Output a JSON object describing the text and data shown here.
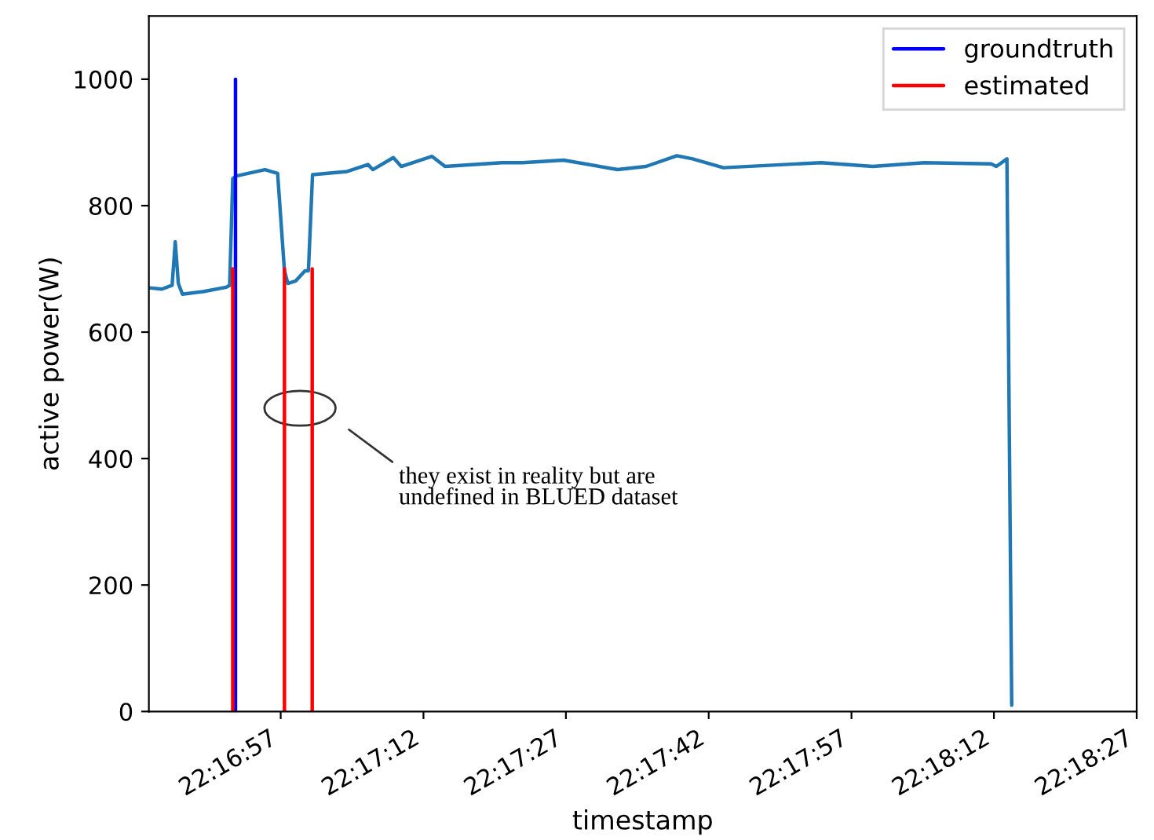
{
  "chart_data": {
    "type": "line",
    "xlabel": "timestamp",
    "ylabel": "active power(W)",
    "xlim": [
      22.27865,
      22.3075
    ],
    "ylim": [
      0,
      1100
    ],
    "xticks": [
      {
        "value": 22.2825,
        "label": "22:16:57"
      },
      {
        "value": 22.28667,
        "label": "22:17:12"
      },
      {
        "value": 22.29083,
        "label": "22:17:27"
      },
      {
        "value": 22.295,
        "label": "22:17:42"
      },
      {
        "value": 22.29917,
        "label": "22:17:57"
      },
      {
        "value": 22.30333,
        "label": "22:18:12"
      },
      {
        "value": 22.3075,
        "label": "22:18:27"
      }
    ],
    "yticks": [
      0,
      200,
      400,
      600,
      800,
      1000
    ],
    "grid": false,
    "legend": "top right",
    "marker": "none",
    "line_style": "solid",
    "series": [
      {
        "color": "#1f77b4",
        "x": [
          22.27865,
          22.27903,
          22.27933,
          22.27942,
          22.27951,
          22.27963,
          22.28023,
          22.28091,
          22.28101,
          22.2811,
          22.28121,
          22.28204,
          22.28241,
          22.28261,
          22.28271,
          22.28294,
          22.28321,
          22.28331,
          22.28343,
          22.28444,
          22.28505,
          22.28519,
          22.28579,
          22.28602,
          22.28692,
          22.2873,
          22.28896,
          22.28956,
          22.29076,
          22.29234,
          22.29317,
          22.29407,
          22.29453,
          22.29543,
          22.29829,
          22.29979,
          22.3013,
          22.30325,
          22.3034,
          22.30371,
          22.30385
        ],
        "values": [
          670,
          668,
          674,
          743,
          677,
          660,
          664,
          671,
          674,
          843,
          847,
          857,
          851,
          697,
          677,
          681,
          697,
          697,
          849,
          854,
          865,
          857,
          876,
          862,
          878,
          862,
          868,
          868,
          872,
          857,
          862,
          879,
          874,
          860,
          868,
          862,
          868,
          866,
          862,
          874,
          10
        ]
      },
      {
        "name": "groundtruth",
        "color": "#0000ff",
        "x": [
          22.28118,
          22.28118
        ],
        "values": [
          0,
          1000
        ]
      },
      {
        "name": "estimated",
        "color": "#ff0000",
        "x": [
          22.2811,
          22.2811,
          null,
          22.28261,
          22.28261,
          null,
          22.28342,
          22.28342
        ],
        "values": [
          0,
          700,
          null,
          0,
          700,
          null,
          0,
          700
        ]
      }
    ],
    "annotations": [
      "they exist in reality but are\nundefined in BLUED dataset"
    ]
  }
}
